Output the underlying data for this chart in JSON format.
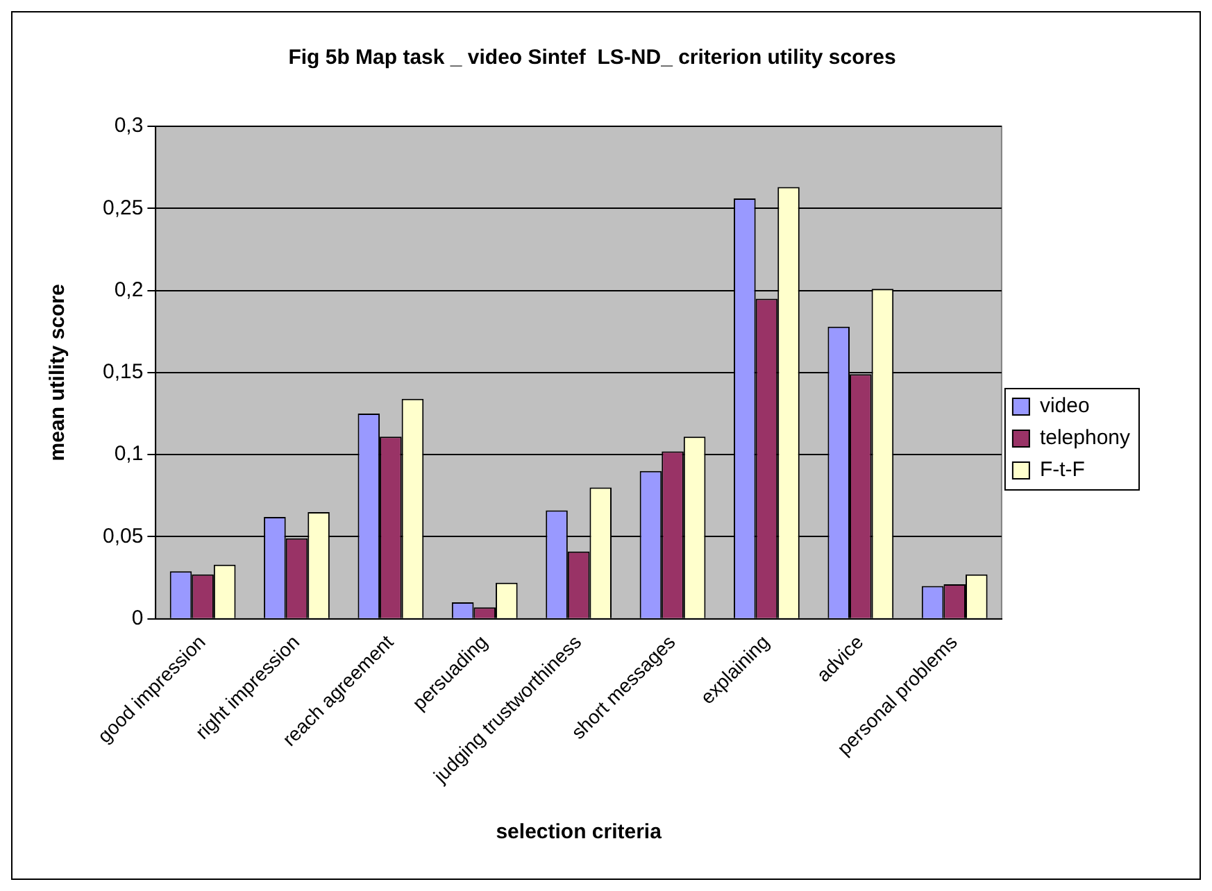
{
  "chart_data": {
    "type": "bar",
    "title": "Fig 5b Map task _ video Sintef  LS-ND_ criterion utility scores",
    "xlabel": "selection criteria",
    "ylabel": "mean utility score",
    "categories": [
      "good impression",
      "right impression",
      "reach agreement",
      "persuading",
      "judging trustworthiness",
      "short messages",
      "explaining",
      "advice",
      "personal problems"
    ],
    "series": [
      {
        "name": "video",
        "color": "#9999ff",
        "values": [
          0.029,
          0.062,
          0.125,
          0.01,
          0.066,
          0.09,
          0.256,
          0.178,
          0.02
        ]
      },
      {
        "name": "telephony",
        "color": "#993366",
        "values": [
          0.027,
          0.049,
          0.111,
          0.007,
          0.041,
          0.102,
          0.195,
          0.149,
          0.021
        ]
      },
      {
        "name": "F-t-F",
        "color": "#ffffcc",
        "values": [
          0.033,
          0.065,
          0.134,
          0.022,
          0.08,
          0.111,
          0.263,
          0.201,
          0.027
        ]
      }
    ],
    "ylim": [
      0,
      0.3
    ],
    "yticks": [
      0,
      {
        "value": 0.05,
        "label": "0,05"
      },
      {
        "value": 0.1,
        "label": "0,1"
      },
      {
        "value": 0.15,
        "label": "0,15"
      },
      {
        "value": 0.2,
        "label": "0,2"
      },
      {
        "value": 0.25,
        "label": "0,25"
      },
      {
        "value": 0.3,
        "label": "0,3"
      }
    ],
    "grid": "y",
    "legend": "right"
  }
}
